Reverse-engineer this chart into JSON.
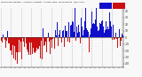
{
  "title": "Milwaukee Weather  Outdoor Humidity  At Daily High  Temperature  (Past Year)",
  "bar_color_above": "#1010cc",
  "bar_color_below": "#cc1010",
  "background_color": "#f8f8f8",
  "plot_bg_color": "#f8f8f8",
  "ylim": [
    -45,
    45
  ],
  "ytick_values": [
    40,
    30,
    20,
    10,
    0,
    -10,
    -20,
    -30,
    -40
  ],
  "ytick_labels": [
    "40",
    "30",
    "20",
    "10",
    "0",
    "-10",
    "-20",
    "-30",
    "-40"
  ],
  "num_bars": 365,
  "seed": 42,
  "seasonal_amplitude": 20,
  "seasonal_phase": 3.3,
  "noise_std": 13,
  "grid_color": "#aaaaaa",
  "legend_blue": "#1010cc",
  "legend_red": "#cc1010"
}
